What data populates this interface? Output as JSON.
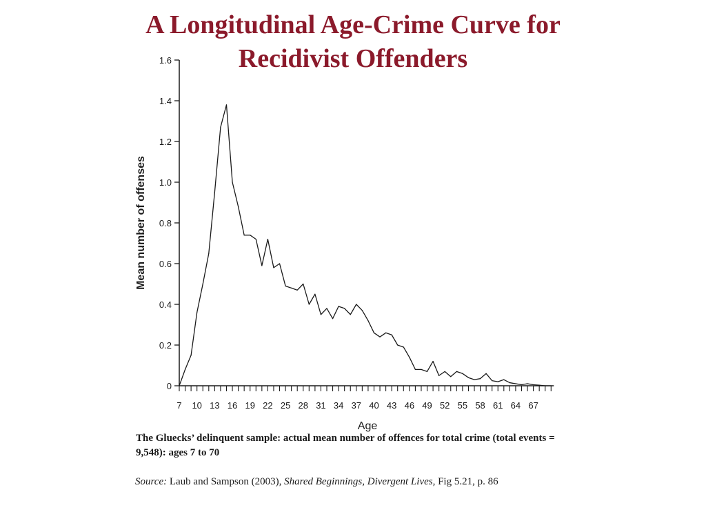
{
  "slide": {
    "title_line1": "A Longitudinal Age-Crime Curve for",
    "title_line2": "Recidivist Offenders",
    "caption": "The Gluecks’ delinquent sample: actual mean number of offences for total crime (total events = 9,548): ages 7 to 70",
    "source_label": "Source:",
    "source_authors": " Laub and Sampson (2003), ",
    "source_book": "Shared Beginnings, Divergent Lives",
    "source_ref": ", Fig 5.21, p. 86",
    "title_color": "#8b1a2b"
  },
  "chart_data": {
    "type": "line",
    "xlabel": "Age",
    "ylabel": "Mean number of offenses",
    "xlim": [
      7,
      70
    ],
    "ylim": [
      0,
      1.6
    ],
    "x_ticks": [
      7,
      10,
      13,
      16,
      19,
      22,
      25,
      28,
      31,
      34,
      37,
      40,
      43,
      46,
      49,
      52,
      55,
      58,
      61,
      64,
      67
    ],
    "y_ticks": [
      0,
      0.2,
      0.4,
      0.6,
      0.8,
      1.0,
      1.2,
      1.4,
      1.6
    ],
    "y_tick_labels": [
      "0",
      "0.2",
      "0.4",
      "0.6",
      "0.8",
      "1.0",
      "1.2",
      "1.4",
      "1.6"
    ],
    "grid": false,
    "x": [
      7,
      8,
      9,
      10,
      11,
      12,
      13,
      14,
      15,
      16,
      17,
      18,
      19,
      20,
      21,
      22,
      23,
      24,
      25,
      26,
      27,
      28,
      29,
      30,
      31,
      32,
      33,
      34,
      35,
      36,
      37,
      38,
      39,
      40,
      41,
      42,
      43,
      44,
      45,
      46,
      47,
      48,
      49,
      50,
      51,
      52,
      53,
      54,
      55,
      56,
      57,
      58,
      59,
      60,
      61,
      62,
      63,
      64,
      65,
      66,
      67,
      68,
      69,
      70
    ],
    "values": [
      0.0,
      0.08,
      0.15,
      0.36,
      0.5,
      0.65,
      0.95,
      1.27,
      1.38,
      1.0,
      0.88,
      0.74,
      0.74,
      0.72,
      0.59,
      0.72,
      0.58,
      0.6,
      0.49,
      0.48,
      0.47,
      0.5,
      0.4,
      0.45,
      0.35,
      0.38,
      0.33,
      0.39,
      0.38,
      0.35,
      0.4,
      0.37,
      0.32,
      0.26,
      0.24,
      0.26,
      0.25,
      0.2,
      0.19,
      0.14,
      0.08,
      0.08,
      0.07,
      0.12,
      0.05,
      0.07,
      0.045,
      0.07,
      0.06,
      0.04,
      0.03,
      0.035,
      0.06,
      0.025,
      0.02,
      0.03,
      0.015,
      0.01,
      0.005,
      0.01,
      0.005,
      0.003,
      0.0,
      0.0
    ]
  }
}
